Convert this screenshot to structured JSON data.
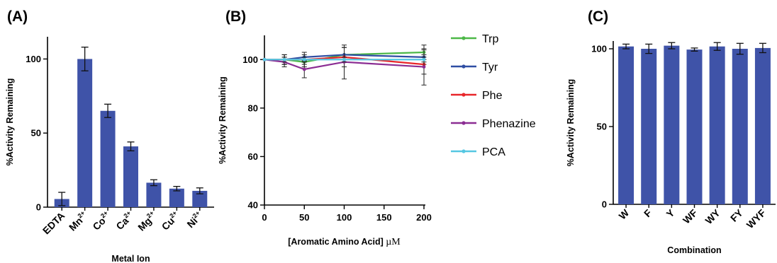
{
  "chart_data": [
    {
      "type": "bar",
      "panel": "(A)",
      "xlabel": "Metal Ion",
      "ylabel": "%Activity Remaining",
      "ylim": [
        0,
        115
      ],
      "yticks": [
        0,
        50,
        100
      ],
      "bar_color": "#3f53a8",
      "categories": [
        {
          "base": "EDTA",
          "sup": ""
        },
        {
          "base": "Mn",
          "sup": "2+"
        },
        {
          "base": "Co",
          "sup": "2+"
        },
        {
          "base": "Ca",
          "sup": "2+"
        },
        {
          "base": "Mg",
          "sup": "2+"
        },
        {
          "base": "Cu",
          "sup": "2+"
        },
        {
          "base": "Ni",
          "sup": "2+"
        }
      ],
      "values": [
        5.5,
        100,
        65,
        41,
        16.5,
        12.5,
        11
      ],
      "errors": [
        4.5,
        8,
        4.5,
        3,
        2,
        1.5,
        2
      ]
    },
    {
      "type": "line",
      "panel": "(B)",
      "xlabel_main": "[Aromatic Amino Acid] ",
      "xlabel_unit": "µM",
      "ylabel": "%Activity Remaining",
      "xlim": [
        0,
        200
      ],
      "ylim": [
        40,
        110
      ],
      "xticks": [
        0,
        50,
        100,
        150,
        200
      ],
      "yticks": [
        40,
        60,
        80,
        100
      ],
      "x": [
        0,
        25,
        50,
        100,
        200
      ],
      "series": [
        {
          "name": "Trp",
          "color": "#4db848",
          "values": [
            100,
            100,
            99,
            102,
            103
          ],
          "errors": [
            0,
            2,
            2,
            3,
            3
          ]
        },
        {
          "name": "Tyr",
          "color": "#2f4ea3",
          "values": [
            100,
            100,
            101,
            102,
            101
          ],
          "errors": [
            0,
            2,
            2,
            3,
            3
          ]
        },
        {
          "name": "Phe",
          "color": "#e8262a",
          "values": [
            100,
            100,
            100,
            101,
            98
          ],
          "errors": [
            0,
            2,
            2,
            4,
            4
          ]
        },
        {
          "name": "Phenazine",
          "color": "#8b2d93",
          "values": [
            100,
            99,
            96,
            99,
            97
          ],
          "errors": [
            0,
            2,
            3.5,
            7,
            7.5
          ]
        },
        {
          "name": "PCA",
          "color": "#55c7e2",
          "values": [
            100,
            100,
            100,
            100,
            100
          ],
          "errors": [
            0,
            1,
            1,
            1,
            1
          ]
        }
      ]
    },
    {
      "type": "bar",
      "panel": "(C)",
      "xlabel": "Combination",
      "ylabel": "%Activity Remaining",
      "ylim": [
        0,
        105
      ],
      "yticks": [
        0,
        50,
        100
      ],
      "bar_color": "#3f53a8",
      "categories": [
        {
          "base": "W",
          "sup": ""
        },
        {
          "base": "F",
          "sup": ""
        },
        {
          "base": "Y",
          "sup": ""
        },
        {
          "base": "WF",
          "sup": ""
        },
        {
          "base": "WY",
          "sup": ""
        },
        {
          "base": "FY",
          "sup": ""
        },
        {
          "base": "WYF",
          "sup": ""
        }
      ],
      "values": [
        101.5,
        100,
        102,
        99.5,
        101.5,
        100,
        100.5
      ],
      "errors": [
        1.5,
        3,
        2,
        1,
        2.5,
        3.5,
        3
      ]
    }
  ]
}
